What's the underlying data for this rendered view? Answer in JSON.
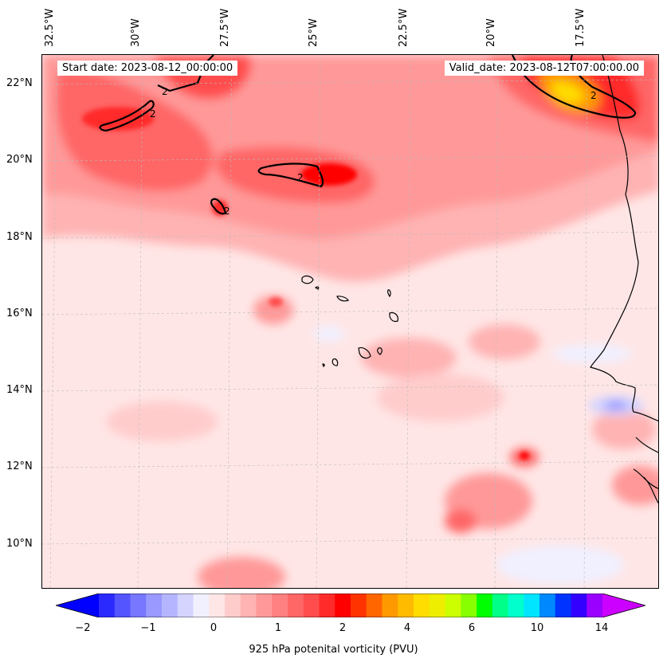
{
  "header": {
    "start_date": "Start date: 2023-08-12_00:00:00",
    "valid_date": "Valid_date: 2023-08-12T07:00:00.00"
  },
  "map": {
    "projection": "lambert-conformal",
    "lon_labels": [
      "32.5°W",
      "30°W",
      "27.5°W",
      "25°W",
      "22.5°W",
      "20°W",
      "17.5°W"
    ],
    "lat_labels": [
      "22°N",
      "20°N",
      "18°N",
      "16°N",
      "14°N",
      "12°N",
      "10°N"
    ],
    "contour_label": "2",
    "field": "925 hPa potential vorticity",
    "colors": {
      "background_low": "#ffe6e6",
      "mid": "#ff9999",
      "high": "#ff2020",
      "peak": "#ffd700",
      "negative": "#eef0ff",
      "coastline": "#000000",
      "contour_2pvu": "#000000"
    }
  },
  "colorbar": {
    "ticks": [
      "−2",
      "−1",
      "0",
      "1",
      "2",
      "4",
      "6",
      "10",
      "14"
    ],
    "title": "925 hPa potenital vorticity (PVU)",
    "colors": [
      "#0000ff",
      "#2a2aff",
      "#5555ff",
      "#7777ff",
      "#9999ff",
      "#b5b5ff",
      "#d4d4ff",
      "#f0f0ff",
      "#ffe6e6",
      "#ffcccc",
      "#ffb3b3",
      "#ff9999",
      "#ff8080",
      "#ff6666",
      "#ff4d4d",
      "#ff2a2a",
      "#ff0000",
      "#ff3300",
      "#ff6600",
      "#ff9900",
      "#ffbb00",
      "#ffdd00",
      "#eeee00",
      "#ccff00",
      "#88ff00",
      "#00ff00",
      "#00ff88",
      "#00ffcc",
      "#00e5ff",
      "#0088ff",
      "#0033ff",
      "#3300ff",
      "#9900ff",
      "#cc00ff"
    ]
  }
}
